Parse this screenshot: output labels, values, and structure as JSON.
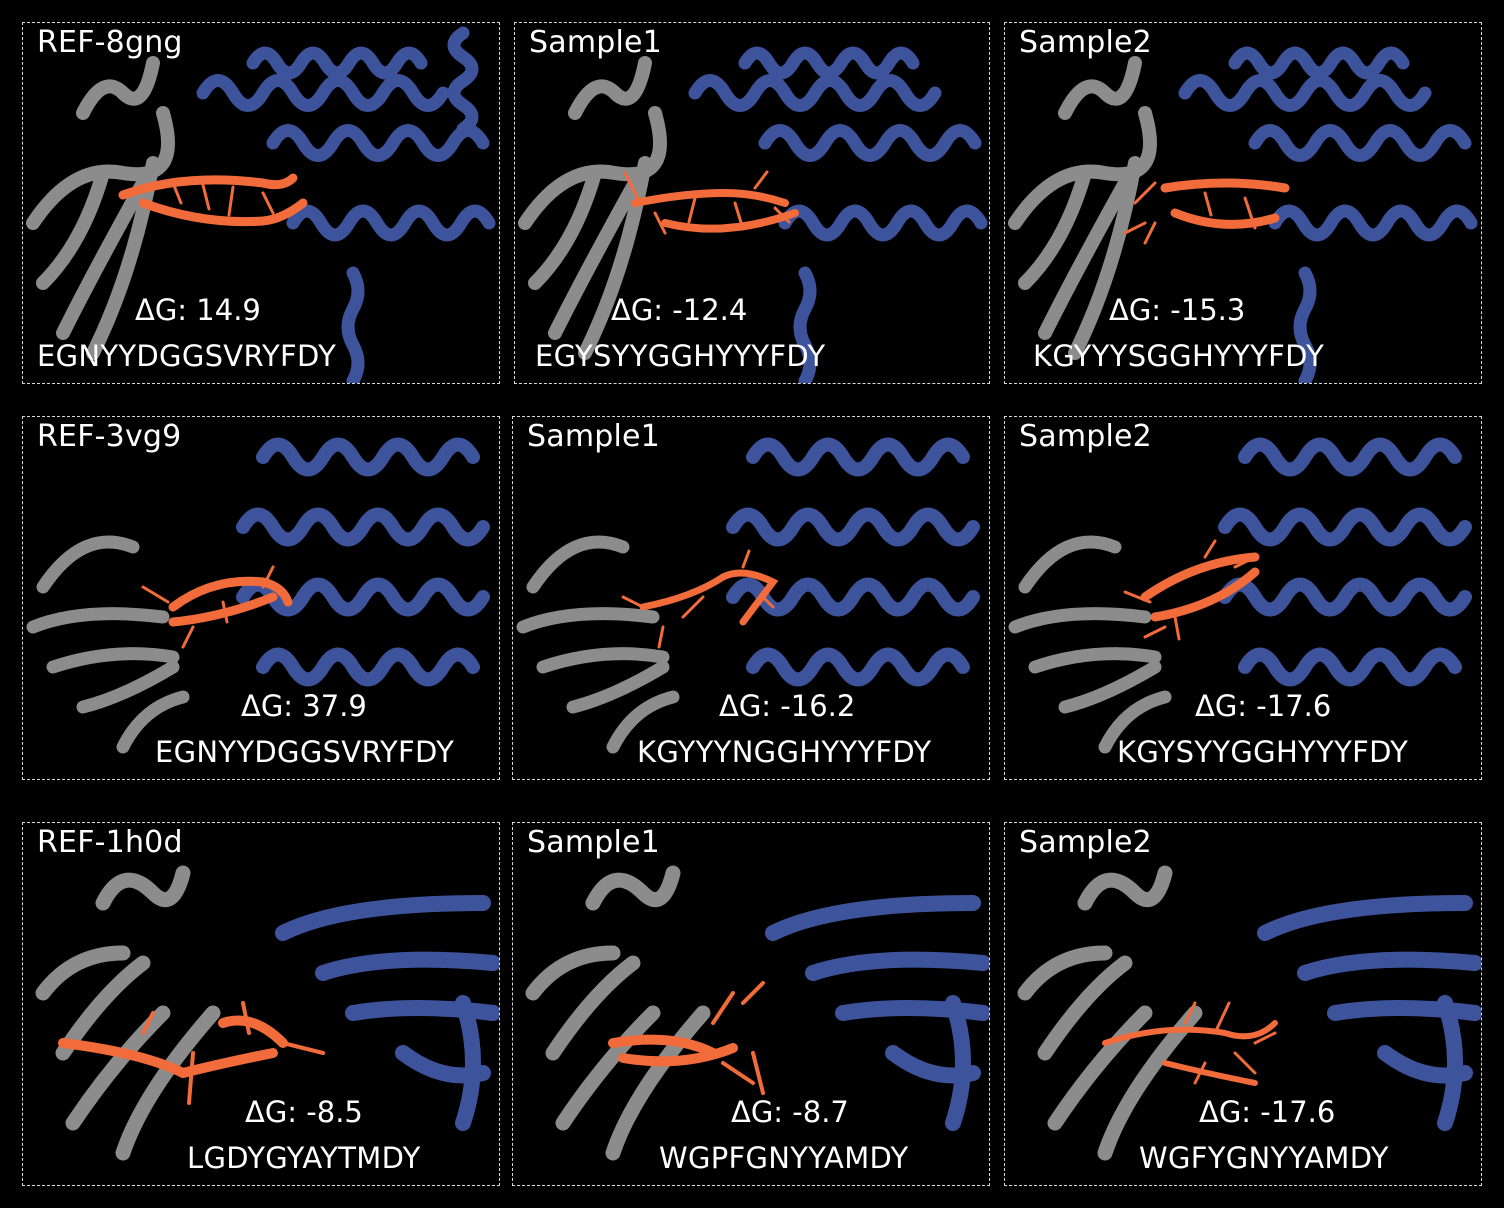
{
  "panels": [
    {
      "label": "REF-8gng",
      "dg": "ΔG: 14.9",
      "seq": "EGNYYDGGSVRYFDY"
    },
    {
      "label": "Sample1",
      "dg": "ΔG: -12.4",
      "seq": "EGYSYYGGHYYYFDY"
    },
    {
      "label": "Sample2",
      "dg": "ΔG: -15.3",
      "seq": "KGYYYSGGHYYYFDY"
    },
    {
      "label": "REF-3vg9",
      "dg": "ΔG: 37.9",
      "seq": "EGNYYDGGSVRYFDY"
    },
    {
      "label": "Sample1",
      "dg": "ΔG: -16.2",
      "seq": "KGYYYNGGHYYYFDY"
    },
    {
      "label": "Sample2",
      "dg": "ΔG: -17.6",
      "seq": "KGYSYYGGHYYYFDY"
    },
    {
      "label": "REF-1h0d",
      "dg": "ΔG: -8.5",
      "seq": "LGDYGYAYTMDY"
    },
    {
      "label": "Sample1",
      "dg": "ΔG: -8.7",
      "seq": "WGPFGNYYAMDY"
    },
    {
      "label": "Sample2",
      "dg": "ΔG: -17.6",
      "seq": "WGFYGNYYAMDY"
    }
  ],
  "colors": {
    "antibody": "#8c8c8c",
    "antigen": "#3d549c",
    "peptide": "#f26b3a",
    "border": "#d9d9d9"
  }
}
